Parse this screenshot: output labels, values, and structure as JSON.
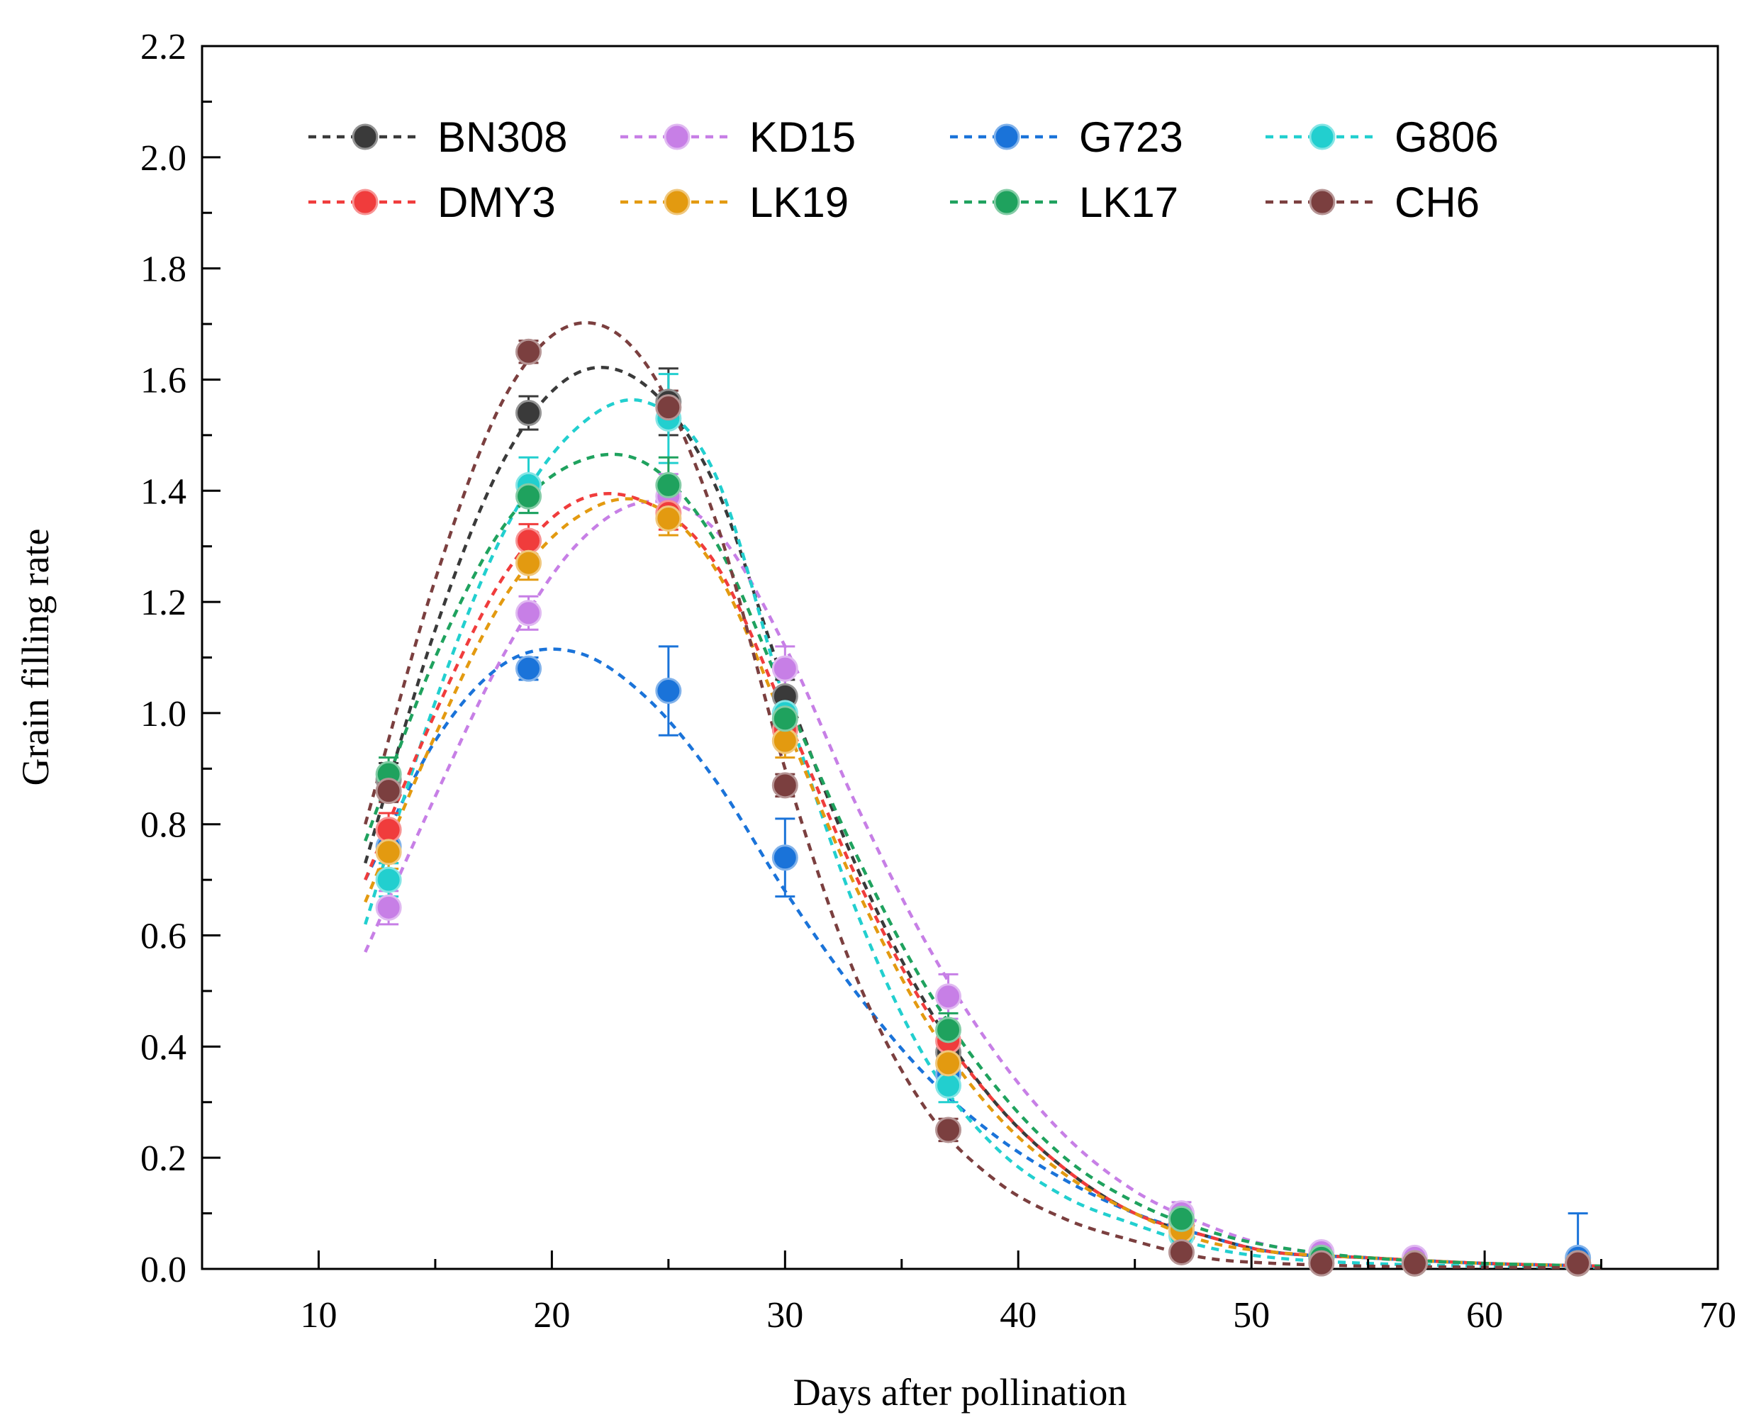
{
  "chart_data": {
    "type": "scatter",
    "title": "",
    "xlabel": "Days after pollination",
    "ylabel": "Grain filling rate",
    "xlim": [
      5,
      70
    ],
    "ylim": [
      0,
      2.2
    ],
    "xticks": [
      "10",
      "20",
      "30",
      "40",
      "50",
      "60",
      "70"
    ],
    "yticks": [
      "0.0",
      "0.2",
      "0.4",
      "0.6",
      "0.8",
      "1.0",
      "1.2",
      "1.4",
      "1.6",
      "1.8",
      "2.0",
      "2.2"
    ],
    "grid": false,
    "legend_position": "top",
    "x": [
      13,
      19,
      25,
      30,
      37,
      47,
      53,
      57,
      64
    ],
    "series": [
      {
        "name": "BN308",
        "color": "#3a3a3a",
        "values": [
          0.88,
          1.54,
          1.56,
          1.03,
          0.39,
          0.08,
          0.02,
          0.01,
          0.01
        ],
        "errors": [
          0.03,
          0.03,
          0.06,
          0.03,
          0.03,
          0.01,
          0.01,
          0.005,
          0.01
        ],
        "fit": [
          [
            12,
            0.73
          ],
          [
            15,
            1.15
          ],
          [
            18,
            1.46
          ],
          [
            21,
            1.61
          ],
          [
            24,
            1.59
          ],
          [
            27,
            1.41
          ],
          [
            30,
            1.05
          ],
          [
            33,
            0.73
          ],
          [
            36,
            0.48
          ],
          [
            39,
            0.3
          ],
          [
            42,
            0.18
          ],
          [
            45,
            0.1
          ],
          [
            48,
            0.06
          ],
          [
            51,
            0.03
          ],
          [
            55,
            0.02
          ],
          [
            60,
            0.01
          ],
          [
            65,
            0.005
          ]
        ]
      },
      {
        "name": "KD15",
        "color": "#c77fe6",
        "values": [
          0.65,
          1.18,
          1.39,
          1.08,
          0.49,
          0.1,
          0.03,
          0.02,
          0.01
        ],
        "errors": [
          0.03,
          0.03,
          0.04,
          0.04,
          0.04,
          0.02,
          0.01,
          0.005,
          0.01
        ],
        "fit": [
          [
            12,
            0.57
          ],
          [
            15,
            0.85
          ],
          [
            18,
            1.11
          ],
          [
            21,
            1.3
          ],
          [
            24,
            1.38
          ],
          [
            27,
            1.33
          ],
          [
            30,
            1.12
          ],
          [
            33,
            0.84
          ],
          [
            36,
            0.59
          ],
          [
            39,
            0.39
          ],
          [
            42,
            0.24
          ],
          [
            45,
            0.14
          ],
          [
            48,
            0.08
          ],
          [
            51,
            0.04
          ],
          [
            55,
            0.02
          ],
          [
            60,
            0.01
          ],
          [
            65,
            0.005
          ]
        ]
      },
      {
        "name": "G723",
        "color": "#1a73d9",
        "values": [
          0.76,
          1.08,
          1.04,
          0.74,
          0.35,
          0.07,
          0.02,
          0.01,
          0.02
        ],
        "errors": [
          0.03,
          0.02,
          0.08,
          0.07,
          0.03,
          0.01,
          0.01,
          0.005,
          0.08
        ],
        "fit": [
          [
            12,
            0.7
          ],
          [
            15,
            0.95
          ],
          [
            18,
            1.09
          ],
          [
            21,
            1.11
          ],
          [
            24,
            1.03
          ],
          [
            27,
            0.88
          ],
          [
            30,
            0.68
          ],
          [
            33,
            0.5
          ],
          [
            36,
            0.35
          ],
          [
            39,
            0.24
          ],
          [
            42,
            0.16
          ],
          [
            45,
            0.1
          ],
          [
            48,
            0.06
          ],
          [
            51,
            0.03
          ],
          [
            55,
            0.02
          ],
          [
            60,
            0.01
          ],
          [
            65,
            0.005
          ]
        ]
      },
      {
        "name": "G806",
        "color": "#22cfcf",
        "values": [
          0.7,
          1.41,
          1.53,
          1.0,
          0.33,
          0.06,
          0.02,
          0.01,
          0.01
        ],
        "errors": [
          0.03,
          0.05,
          0.08,
          0.03,
          0.03,
          0.01,
          0.01,
          0.005,
          0.01
        ],
        "fit": [
          [
            12,
            0.62
          ],
          [
            15,
            1.02
          ],
          [
            18,
            1.33
          ],
          [
            21,
            1.51
          ],
          [
            24,
            1.56
          ],
          [
            27,
            1.43
          ],
          [
            30,
            1.02
          ],
          [
            33,
            0.65
          ],
          [
            36,
            0.38
          ],
          [
            39,
            0.22
          ],
          [
            42,
            0.13
          ],
          [
            45,
            0.08
          ],
          [
            48,
            0.04
          ],
          [
            51,
            0.02
          ],
          [
            55,
            0.01
          ],
          [
            60,
            0.005
          ],
          [
            65,
            0.003
          ]
        ]
      },
      {
        "name": "DMY3",
        "color": "#f03c3c",
        "values": [
          0.79,
          1.31,
          1.36,
          0.97,
          0.41,
          0.08,
          0.02,
          0.01,
          0.01
        ],
        "errors": [
          0.03,
          0.03,
          0.03,
          0.03,
          0.03,
          0.01,
          0.01,
          0.005,
          0.01
        ],
        "fit": [
          [
            12,
            0.7
          ],
          [
            15,
            1.0
          ],
          [
            18,
            1.25
          ],
          [
            21,
            1.38
          ],
          [
            24,
            1.38
          ],
          [
            27,
            1.27
          ],
          [
            30,
            1.0
          ],
          [
            33,
            0.71
          ],
          [
            36,
            0.47
          ],
          [
            39,
            0.3
          ],
          [
            42,
            0.18
          ],
          [
            45,
            0.1
          ],
          [
            48,
            0.06
          ],
          [
            51,
            0.03
          ],
          [
            55,
            0.02
          ],
          [
            60,
            0.01
          ],
          [
            65,
            0.005
          ]
        ]
      },
      {
        "name": "LK19",
        "color": "#e39a10",
        "values": [
          0.75,
          1.27,
          1.35,
          0.95,
          0.37,
          0.07,
          0.02,
          0.01,
          0.01
        ],
        "errors": [
          0.03,
          0.03,
          0.03,
          0.03,
          0.03,
          0.01,
          0.01,
          0.005,
          0.01
        ],
        "fit": [
          [
            12,
            0.66
          ],
          [
            15,
            0.96
          ],
          [
            18,
            1.21
          ],
          [
            21,
            1.35
          ],
          [
            24,
            1.38
          ],
          [
            27,
            1.26
          ],
          [
            30,
            0.98
          ],
          [
            33,
            0.69
          ],
          [
            36,
            0.45
          ],
          [
            39,
            0.28
          ],
          [
            42,
            0.17
          ],
          [
            45,
            0.1
          ],
          [
            48,
            0.05
          ],
          [
            51,
            0.03
          ],
          [
            55,
            0.02
          ],
          [
            60,
            0.01
          ],
          [
            65,
            0.005
          ]
        ]
      },
      {
        "name": "LK17",
        "color": "#1fa25e",
        "values": [
          0.89,
          1.39,
          1.41,
          0.99,
          0.43,
          0.09,
          0.02,
          0.01,
          0.01
        ],
        "errors": [
          0.03,
          0.03,
          0.05,
          0.03,
          0.03,
          0.01,
          0.01,
          0.005,
          0.01
        ],
        "fit": [
          [
            12,
            0.77
          ],
          [
            15,
            1.1
          ],
          [
            18,
            1.34
          ],
          [
            21,
            1.45
          ],
          [
            24,
            1.45
          ],
          [
            27,
            1.31
          ],
          [
            30,
            1.03
          ],
          [
            33,
            0.75
          ],
          [
            36,
            0.51
          ],
          [
            39,
            0.33
          ],
          [
            42,
            0.2
          ],
          [
            45,
            0.12
          ],
          [
            48,
            0.07
          ],
          [
            51,
            0.04
          ],
          [
            55,
            0.02
          ],
          [
            60,
            0.01
          ],
          [
            65,
            0.005
          ]
        ]
      },
      {
        "name": "CH6",
        "color": "#7b3f3f",
        "values": [
          0.86,
          1.65,
          1.55,
          0.87,
          0.25,
          0.03,
          0.01,
          0.01,
          0.01
        ],
        "errors": [
          0.02,
          0.02,
          0.03,
          0.02,
          0.02,
          0.01,
          0.005,
          0.005,
          0.005
        ],
        "fit": [
          [
            12,
            0.8
          ],
          [
            15,
            1.24
          ],
          [
            18,
            1.57
          ],
          [
            21,
            1.7
          ],
          [
            24,
            1.63
          ],
          [
            27,
            1.35
          ],
          [
            30,
            0.9
          ],
          [
            33,
            0.53
          ],
          [
            36,
            0.29
          ],
          [
            39,
            0.16
          ],
          [
            42,
            0.09
          ],
          [
            45,
            0.05
          ],
          [
            48,
            0.02
          ],
          [
            51,
            0.01
          ],
          [
            55,
            0.005
          ],
          [
            60,
            0.003
          ],
          [
            65,
            0.002
          ]
        ]
      }
    ]
  }
}
